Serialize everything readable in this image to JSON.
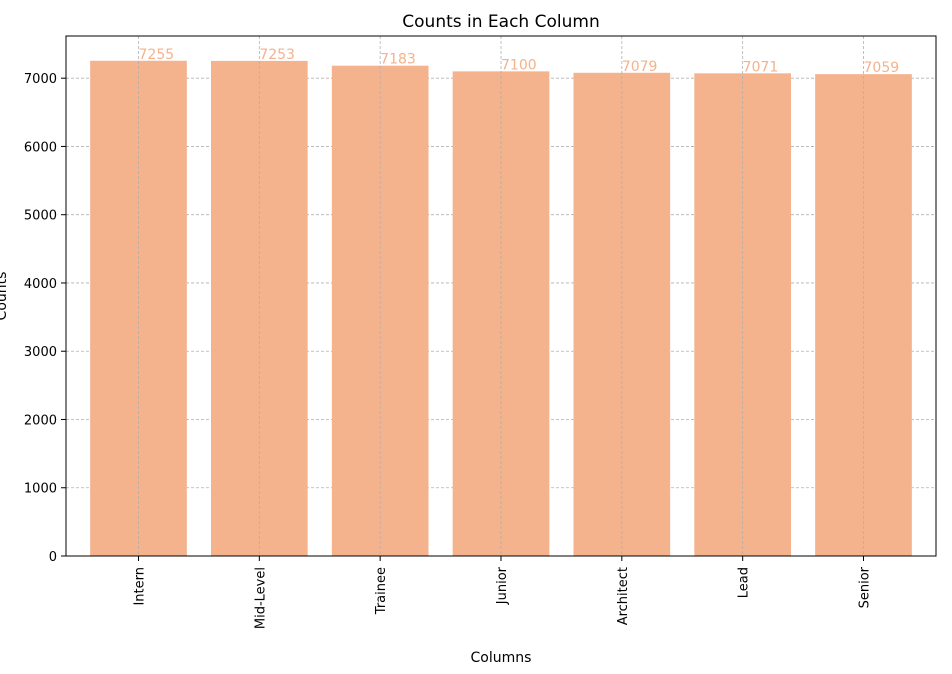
{
  "chart_data": {
    "type": "bar",
    "title": "Counts in Each Column",
    "xlabel": "Columns",
    "ylabel": "Counts",
    "categories": [
      "Intern",
      "Mid-Level",
      "Trainee",
      "Junior",
      "Architect",
      "Lead",
      "Senior"
    ],
    "values": [
      7255,
      7253,
      7183,
      7100,
      7079,
      7071,
      7059
    ],
    "value_labels": [
      "7255",
      "7253",
      "7183",
      "7100",
      "7079",
      "7071",
      "7059"
    ],
    "ylim": [
      0,
      7618
    ],
    "yticks": [
      0,
      1000,
      2000,
      3000,
      4000,
      5000,
      6000,
      7000
    ],
    "ytick_labels": [
      "0",
      "1000",
      "2000",
      "3000",
      "4000",
      "5000",
      "6000",
      "7000"
    ],
    "grid": true,
    "bar_color": "#f4b28d",
    "label_color": "#f4b28d",
    "grid_color": "#b0b0b0"
  }
}
